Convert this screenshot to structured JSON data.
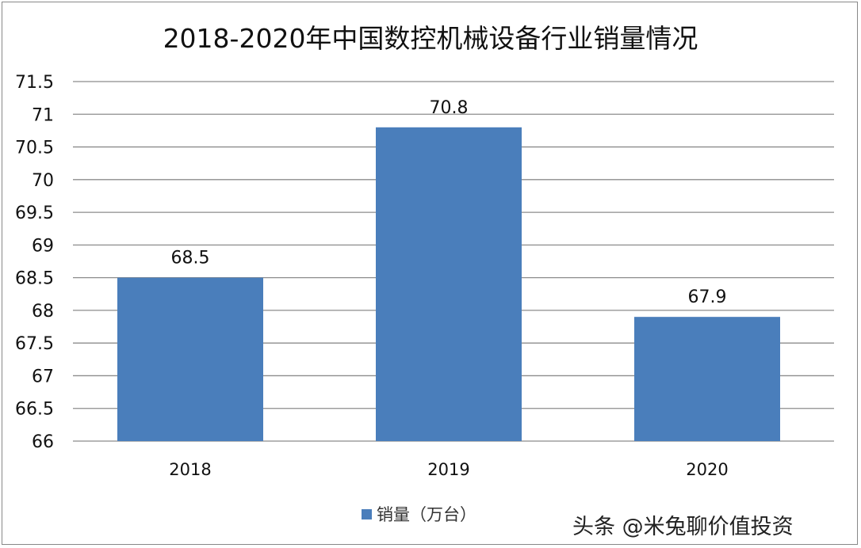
{
  "chart_data": {
    "type": "bar",
    "title": "2018-2020年中国数控机械设备行业销量情况",
    "categories": [
      "2018",
      "2019",
      "2020"
    ],
    "series": [
      {
        "name": "销量（万台）",
        "values": [
          68.5,
          70.8,
          67.9
        ],
        "color": "#4a7ebb"
      }
    ],
    "data_labels": [
      "68.5",
      "70.8",
      "67.9"
    ],
    "yticks": [
      "66",
      "66.5",
      "67",
      "67.5",
      "68",
      "68.5",
      "69",
      "69.5",
      "70",
      "70.5",
      "71",
      "71.5"
    ],
    "ylim": [
      66,
      71.5
    ],
    "grid": true,
    "legend_position": "bottom",
    "xlabel": "",
    "ylabel": ""
  },
  "watermark": "头条 @米兔聊价值投资"
}
